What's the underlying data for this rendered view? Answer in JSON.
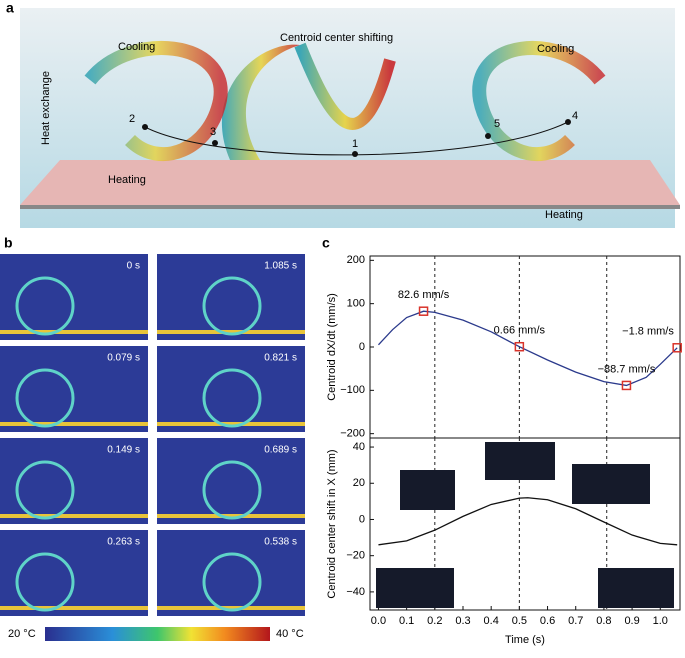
{
  "panel_labels": [
    "a",
    "b",
    "c"
  ],
  "diagram": {
    "title": "Centroid center shifting",
    "side_label": "Heat exchange",
    "cooling": [
      "Cooling",
      "Cooling"
    ],
    "heating": [
      "Heating",
      "Heating"
    ],
    "points": [
      "1",
      "2",
      "3",
      "4",
      "5"
    ]
  },
  "thermal": {
    "times": [
      "0 s",
      "1.085 s",
      "0.079 s",
      "0.821 s",
      "0.149 s",
      "0.689 s",
      "0.263 s",
      "0.538 s"
    ],
    "colorbar": [
      "20 °C",
      "40 °C"
    ]
  },
  "chart_data": [
    {
      "type": "line",
      "ylabel": "Centroid dX/dt (mm/s)",
      "color": "#2b3a8c",
      "xlim": [
        -0.03,
        1.07
      ],
      "ylim": [
        -210,
        210
      ],
      "yticks": [
        {
          "value": -200,
          "label": "−200"
        },
        {
          "value": -100,
          "label": "−100"
        },
        0,
        100,
        200
      ],
      "vlines": [
        0.2,
        0.5,
        0.81
      ],
      "x": [
        0,
        0.05,
        0.1,
        0.16,
        0.2,
        0.3,
        0.4,
        0.5,
        0.6,
        0.7,
        0.8,
        0.88,
        0.95,
        1.0,
        1.06
      ],
      "values": [
        5,
        40,
        68,
        82.6,
        80,
        62,
        35,
        0.66,
        -30,
        -58,
        -80,
        -88.7,
        -70,
        -40,
        -1.8
      ],
      "markers": {
        "color": "#d9342b",
        "x": [
          0.16,
          0.5,
          0.88,
          1.06
        ],
        "values": [
          82.6,
          0.66,
          -88.7,
          -1.8
        ],
        "value_labels": [
          "82.6 mm/s",
          "0.66 mm/s",
          "−88.7 mm/s",
          "−1.8 mm/s"
        ]
      }
    },
    {
      "type": "line",
      "ylabel": "Centroid center shift in X (mm)",
      "xlabel": "Time (s)",
      "color": "#111111",
      "xlim": [
        -0.03,
        1.07
      ],
      "ylim": [
        -50,
        45
      ],
      "yticks": [
        {
          "value": -40,
          "label": "−40"
        },
        {
          "value": -20,
          "label": "−20"
        },
        0,
        20,
        40
      ],
      "xticks": [
        {
          "value": 0,
          "label": "0.0"
        },
        0.1,
        0.2,
        0.3,
        0.4,
        0.5,
        0.6,
        0.7,
        0.8,
        0.9,
        {
          "value": 1,
          "label": "1.0"
        }
      ],
      "vlines": [
        0.2,
        0.5,
        0.81
      ],
      "x": [
        0,
        0.1,
        0.2,
        0.3,
        0.4,
        0.5,
        0.53,
        0.6,
        0.7,
        0.8,
        0.9,
        1.0,
        1.06
      ],
      "values": [
        -14,
        -11.8,
        -5.9,
        1.7,
        8.3,
        11.8,
        12,
        10.9,
        5.9,
        -1.4,
        -8.6,
        -13.2,
        -14
      ]
    }
  ]
}
